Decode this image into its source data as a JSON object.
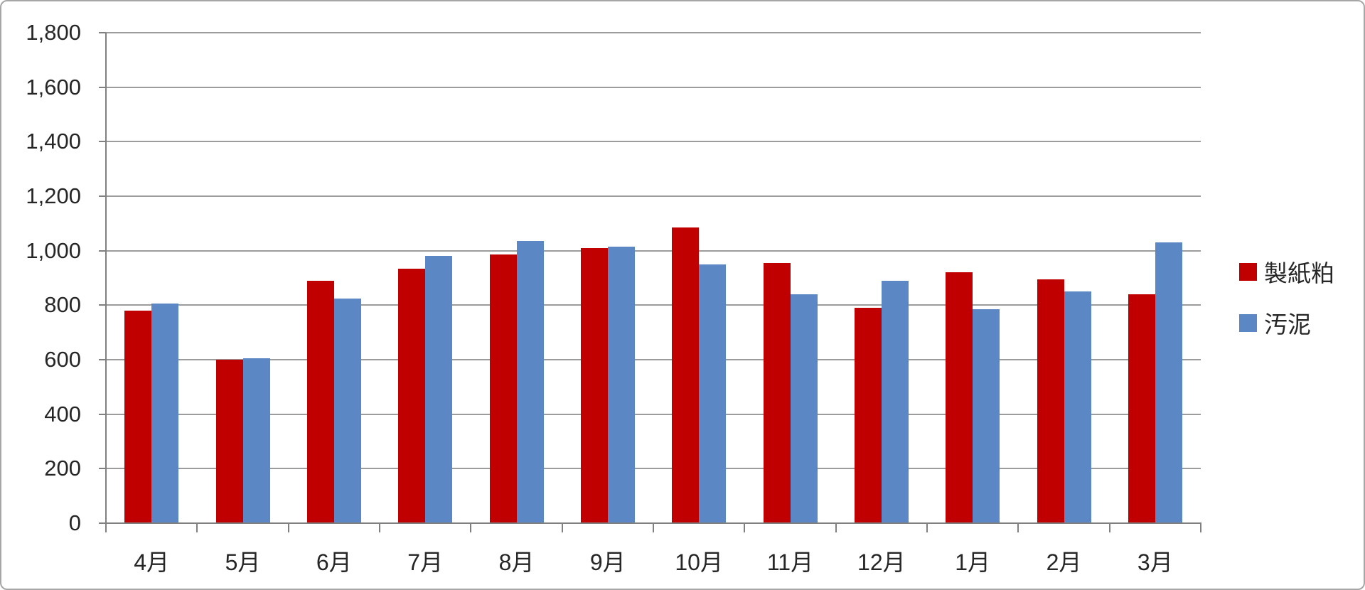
{
  "chart_data": {
    "type": "bar",
    "title": "",
    "xlabel": "",
    "ylabel": "",
    "categories": [
      "4月",
      "5月",
      "6月",
      "7月",
      "8月",
      "9月",
      "10月",
      "11月",
      "12月",
      "1月",
      "2月",
      "3月"
    ],
    "series": [
      {
        "name": "製紙粕",
        "color": "#c00000",
        "values": [
          780,
          600,
          890,
          935,
          985,
          1010,
          1085,
          955,
          790,
          920,
          895,
          840
        ]
      },
      {
        "name": "汚泥",
        "color": "#5b87c5",
        "values": [
          805,
          605,
          825,
          980,
          1035,
          1015,
          950,
          840,
          890,
          785,
          850,
          1030
        ]
      }
    ],
    "ylim": [
      0,
      1800
    ],
    "ytick_step": 200,
    "ytick_labels": [
      "0",
      "200",
      "400",
      "600",
      "800",
      "1,000",
      "1,200",
      "1,400",
      "1,600",
      "1,800"
    ],
    "grid": true,
    "legend_position": "right"
  },
  "colors": {
    "gridline": "#9c9c9c",
    "axis": "#808080",
    "frame_border": "#a6a6a6",
    "text": "#262626"
  },
  "legend": {
    "items": [
      {
        "label": "製紙粕",
        "color": "#c00000"
      },
      {
        "label": "汚泥",
        "color": "#5b87c5"
      }
    ]
  }
}
